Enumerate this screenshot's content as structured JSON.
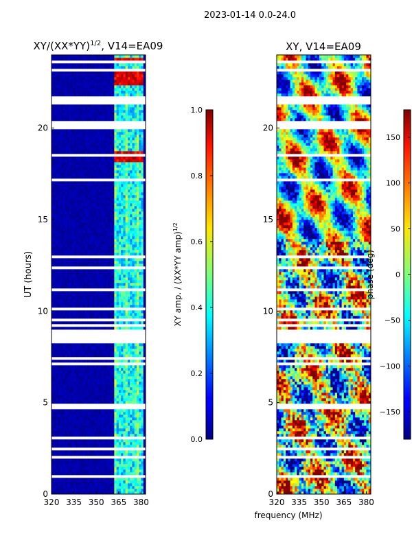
{
  "figure_title": "2023-01-14 0.0-24.0",
  "chart_data": [
    {
      "type": "heatmap",
      "title": "XY/(XX*YY)",
      "title_sup": "1/2",
      "title_suffix": ", V14=EA09",
      "xlabel": "",
      "ylabel": "UT (hours)",
      "xlim": [
        320,
        383
      ],
      "ylim": [
        0,
        24
      ],
      "xticks": [
        "320",
        "335",
        "350",
        "365",
        "380"
      ],
      "yticks": [
        "0",
        "5",
        "10",
        "15",
        "20"
      ],
      "colormap": "jet",
      "colorbar": {
        "label": "XY amp. / (XX*YY amp)",
        "label_sup": "1/2",
        "range": [
          0.0,
          1.0
        ],
        "ticks": [
          "0.0",
          "0.2",
          "0.4",
          "0.6",
          "0.8",
          "1.0"
        ]
      },
      "notes": "Mostly near 0 (dark blue) across band; elevated values (0.4-0.6) in channels ~362-381 MHz; high values (~0.8-1.0) near 18.5 h, 22.5-23 h and 23.5-24 h in upper band; white rows are flagged/missing data."
    },
    {
      "type": "heatmap",
      "title": "XY, V14=EA09",
      "xlabel": "frequency (MHz)",
      "ylabel": "",
      "xlim": [
        320,
        383
      ],
      "ylim": [
        0,
        24
      ],
      "xticks": [
        "320",
        "335",
        "350",
        "365",
        "380"
      ],
      "yticks": [
        "0",
        "5",
        "10",
        "15",
        "20"
      ],
      "colormap": "jet",
      "colorbar": {
        "label": "phase (deg)",
        "range": [
          -180,
          180
        ],
        "ticks": [
          "−150",
          "−100",
          "−50",
          "0",
          "50",
          "100",
          "150"
        ]
      },
      "notes": "Noisy phase pattern spanning full range -180 to 180 deg; white rows are flagged/missing data."
    }
  ]
}
